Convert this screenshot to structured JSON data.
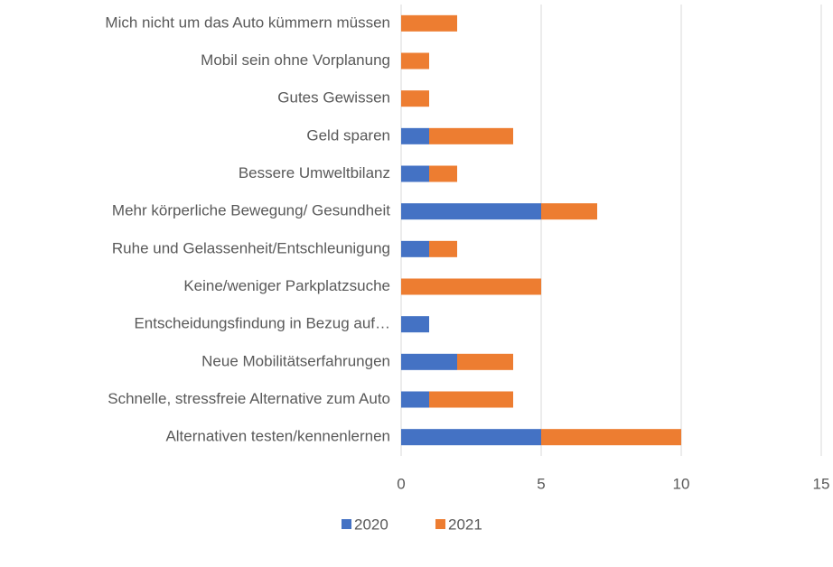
{
  "chart_data": {
    "type": "bar",
    "orientation": "horizontal",
    "stacked": true,
    "categories": [
      "Mich nicht um das Auto kümmern müssen",
      "Mobil sein ohne Vorplanung",
      "Gutes Gewissen",
      "Geld sparen",
      "Bessere Umweltbilanz",
      "Mehr körperliche Bewegung/ Gesundheit",
      "Ruhe und Gelassenheit/Entschleunigung",
      "Keine/weniger Parkplatzsuche",
      "Entscheidungsfindung in Bezug auf…",
      "Neue Mobilitätserfahrungen",
      "Schnelle, stressfreie Alternative zum Auto",
      "Alternativen testen/kennenlernen"
    ],
    "series": [
      {
        "name": "2020",
        "color": "#4472c4",
        "values": [
          0,
          0,
          0,
          1,
          1,
          5,
          1,
          0,
          1,
          2,
          1,
          5
        ]
      },
      {
        "name": "2021",
        "color": "#ed7d31",
        "values": [
          2,
          1,
          1,
          3,
          1,
          2,
          1,
          5,
          0,
          2,
          3,
          5
        ]
      }
    ],
    "xlim": [
      0,
      15
    ],
    "xticks": [
      0,
      5,
      10,
      15
    ],
    "grid": true,
    "legend": "bottom"
  }
}
